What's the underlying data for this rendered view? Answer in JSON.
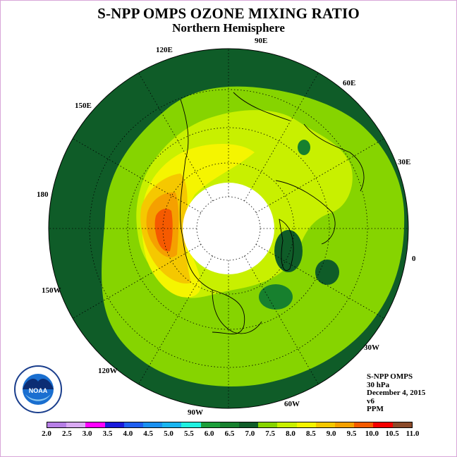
{
  "header": {
    "title": "S-NPP OMPS OZONE MIXING RATIO",
    "subtitle": "Northern Hemisphere"
  },
  "longitude_labels": [
    {
      "id": "lon-90e",
      "text": "90E"
    },
    {
      "id": "lon-60e",
      "text": "60E"
    },
    {
      "id": "lon-30e",
      "text": "30E"
    },
    {
      "id": "lon-0",
      "text": "0"
    },
    {
      "id": "lon-30w",
      "text": "30W"
    },
    {
      "id": "lon-60w",
      "text": "60W"
    },
    {
      "id": "lon-90w",
      "text": "90W"
    },
    {
      "id": "lon-120w",
      "text": "120W"
    },
    {
      "id": "lon-150w",
      "text": "150W"
    },
    {
      "id": "lon-180",
      "text": "180"
    },
    {
      "id": "lon-150e",
      "text": "150E"
    },
    {
      "id": "lon-120e",
      "text": "120E"
    }
  ],
  "info": {
    "instrument": "S-NPP OMPS",
    "level": "30 hPa",
    "date": "December 4, 2015",
    "version": "v6",
    "units": "PPM"
  },
  "logo": {
    "text": "NOAA",
    "ring_text": "NATIONAL OCEANIC AND ATMOSPHERIC ADMINISTRATION",
    "bottom_text": "U.S. DEPARTMENT OF COMMERCE",
    "icon": "noaa-seal-icon"
  },
  "colorbar": {
    "ticks": [
      "2.0",
      "2.5",
      "3.0",
      "3.5",
      "4.0",
      "4.5",
      "5.0",
      "5.5",
      "6.0",
      "6.5",
      "7.0",
      "7.5",
      "8.0",
      "8.5",
      "9.0",
      "9.5",
      "10.0",
      "10.5",
      "11.0"
    ],
    "colors": [
      "#b77fe6",
      "#d9a9f2",
      "#ff00ff",
      "#1a1adb",
      "#1f5ff0",
      "#1a90f0",
      "#19b5f0",
      "#20f0e0",
      "#1c9e3a",
      "#17802e",
      "#0f5c28",
      "#86d400",
      "#c8f000",
      "#f5f500",
      "#f5c800",
      "#f5a000",
      "#f55a00",
      "#f50000",
      "#8b4a2a"
    ]
  },
  "chart_data": {
    "type": "heatmap",
    "title": "S-NPP OMPS OZONE MIXING RATIO",
    "subtitle": "Northern Hemisphere",
    "projection": "north polar stereographic",
    "level": "30 hPa",
    "date": "December 4, 2015",
    "units": "PPM",
    "scale_range": [
      2.0,
      11.0
    ],
    "scale_step": 0.5,
    "regions": [
      {
        "name": "outer ring",
        "range_ppm": "6.5-7.0"
      },
      {
        "name": "mid latitudes",
        "range_ppm": "7.5-8.0"
      },
      {
        "name": "near polar night",
        "range_ppm": "8.0-9.0"
      },
      {
        "name": "Alaska / Bering maximum",
        "range_ppm": "9.0-10.0"
      },
      {
        "name": "polar night",
        "range_ppm": "no data"
      }
    ]
  }
}
